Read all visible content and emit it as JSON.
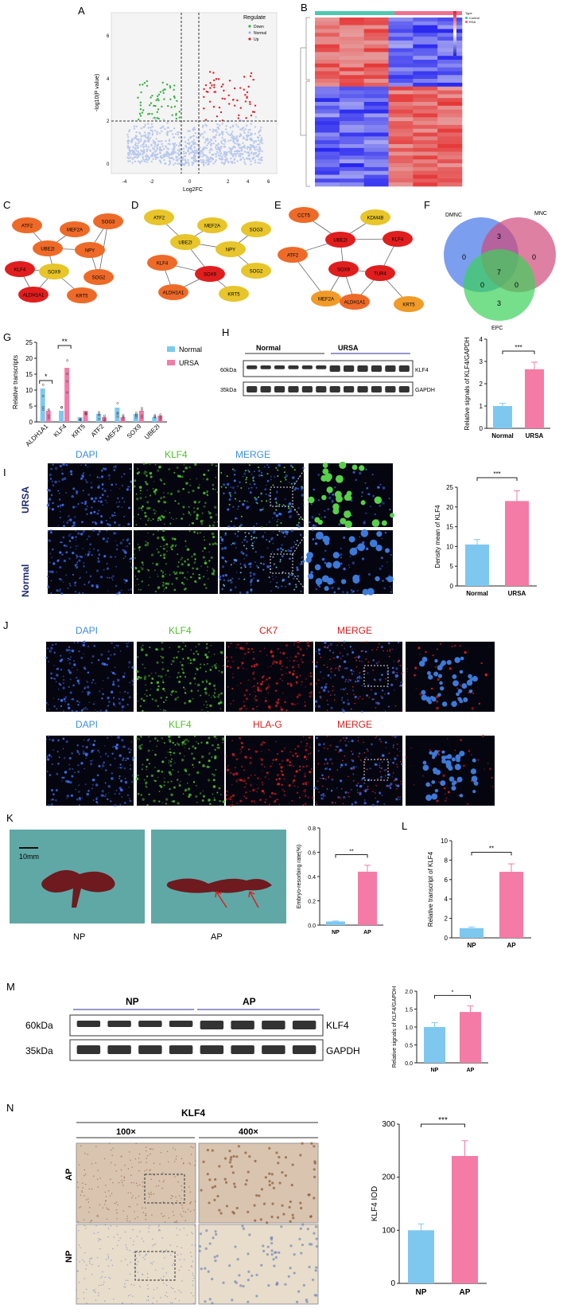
{
  "panels": {
    "A": "A",
    "B": "B",
    "C": "C",
    "D": "D",
    "E": "E",
    "F": "F",
    "G": "G",
    "H": "H",
    "I": "I",
    "J": "J",
    "K": "K",
    "L": "L",
    "M": "M",
    "N": "N"
  },
  "volcano": {
    "xlabel": "Log2FC",
    "ylabel": "-log10(P value)",
    "xticks": [
      "-4",
      "-2",
      "0",
      "2",
      "4",
      "6"
    ],
    "yticks": [
      "0",
      "2",
      "4",
      "6"
    ],
    "legend_title": "Regulate",
    "legend": [
      {
        "label": "Down",
        "color": "#3cb043"
      },
      {
        "label": "Normal",
        "color": "#9fb6e8"
      },
      {
        "label": "Up",
        "color": "#e0202b"
      }
    ]
  },
  "heatmap": {
    "legend_title": "Type",
    "groups": [
      {
        "label": "Control",
        "color": "#4ec9b0"
      },
      {
        "label": "RSA",
        "color": "#f07090"
      }
    ],
    "scale": [
      "1.5",
      "1",
      "0.5",
      "0",
      "-0.5",
      "-1",
      "-1.5"
    ]
  },
  "networks": {
    "C": [
      "ATF2",
      "MEF2A",
      "SOX9",
      "UBE2I",
      "NPY",
      "SOG2",
      "SOG3",
      "KRT5",
      "ALDH1A1",
      "KLF4"
    ],
    "D": [
      "ATF2",
      "MEF2A",
      "SOG3",
      "UBE2I",
      "NPY",
      "KLF4",
      "SOX9",
      "SOG2",
      "ALDH1A1",
      "KRT5"
    ],
    "E": [
      "CCT5",
      "KDM4B",
      "UBE2I",
      "KLF4",
      "SOX9",
      "TUR4",
      "KRT5",
      "ATF2",
      "MEF2A",
      "ALDH1A1"
    ]
  },
  "venn": {
    "sets": [
      "DMNC",
      "MNC",
      "EPC"
    ],
    "values": [
      "0",
      "3",
      "0",
      "7",
      "0",
      "0",
      "3"
    ]
  },
  "colors": {
    "normal": "#7ec8f0",
    "ursa": "#f37ba5",
    "dapi": "#3c8ee0",
    "klf4": "#4fc12d",
    "ck7": "#d42020",
    "merge_red": "#d42020"
  },
  "chart_data": [
    {
      "type": "bar",
      "title": "",
      "ylabel": "Relative transcripts",
      "categories": [
        "ALDH1A1",
        "KLF4",
        "KRT5",
        "ATF2",
        "MEF2A",
        "SOX9",
        "UBE2I"
      ],
      "series": [
        {
          "name": "Normal",
          "values": [
            10.5,
            3.5,
            1.5,
            2.5,
            4.5,
            2.5,
            1.5
          ]
        },
        {
          "name": "URSA",
          "values": [
            3.5,
            17.0,
            3.5,
            1.5,
            1.5,
            3.5,
            2.0
          ]
        }
      ],
      "ylim": [
        0,
        25
      ],
      "yticks": [
        "0",
        "5",
        "10",
        "15",
        "20",
        "25"
      ],
      "significance": [
        "*",
        "**"
      ]
    },
    {
      "type": "bar",
      "ylabel": "Relative signals of KLF4/GAPDH",
      "categories": [
        "Normal",
        "URSA"
      ],
      "values": [
        1.0,
        2.65
      ],
      "ylim": [
        0,
        4
      ],
      "yticks": [
        "0",
        "1",
        "2",
        "3",
        "4"
      ],
      "significance": "***"
    },
    {
      "type": "bar",
      "ylabel": "Density mean of KLF4",
      "categories": [
        "Normal",
        "URSA"
      ],
      "values": [
        10.5,
        21.5
      ],
      "ylim": [
        0,
        25
      ],
      "yticks": [
        "0",
        "5",
        "10",
        "15",
        "20",
        "25"
      ],
      "significance": "***"
    },
    {
      "type": "bar",
      "ylabel": "Embryo-resorbing rate(%)",
      "categories": [
        "NP",
        "AP"
      ],
      "values": [
        0.03,
        0.44
      ],
      "ylim": [
        0,
        0.8
      ],
      "yticks": [
        "0.0",
        "0.2",
        "0.4",
        "0.6",
        "0.8"
      ],
      "significance": "**"
    },
    {
      "type": "bar",
      "ylabel": "Relative transcript of KLF4",
      "categories": [
        "NP",
        "AP"
      ],
      "values": [
        1.0,
        6.8
      ],
      "ylim": [
        0,
        10
      ],
      "yticks": [
        "0",
        "2",
        "4",
        "6",
        "8",
        "10"
      ],
      "significance": "**"
    },
    {
      "type": "bar",
      "ylabel": "Relative signals of KLF4/GAPDH",
      "categories": [
        "NP",
        "AP"
      ],
      "values": [
        1.0,
        1.42
      ],
      "ylim": [
        0,
        2.0
      ],
      "yticks": [
        "0.0",
        "0.5",
        "1.0",
        "1.5",
        "2.0"
      ],
      "significance": "*"
    },
    {
      "type": "bar",
      "ylabel": "KLF4 IOD",
      "categories": [
        "NP",
        "AP"
      ],
      "values": [
        100,
        240
      ],
      "ylim": [
        0,
        300
      ],
      "yticks": [
        "0",
        "100",
        "200",
        "300"
      ],
      "significance": "***"
    }
  ],
  "blotH": {
    "groups": [
      "Normal",
      "URSA"
    ],
    "rows": [
      {
        "mw": "60kDa",
        "name": "KLF4"
      },
      {
        "mw": "35kDa",
        "name": "GAPDH"
      }
    ]
  },
  "imgI": {
    "columns": [
      "DAPI",
      "KLF4",
      "MERGE"
    ],
    "rows": [
      "URSA",
      "Normal"
    ]
  },
  "imgJ": {
    "row1": [
      "DAPI",
      "KLF4",
      "CK7",
      "MERGE"
    ],
    "row2": [
      "DAPI",
      "KLF4",
      "HLA-G",
      "MERGE"
    ]
  },
  "imgK": {
    "scale": "10mm",
    "labels": [
      "NP",
      "AP"
    ]
  },
  "blotM": {
    "groups": [
      "NP",
      "AP"
    ],
    "rows": [
      {
        "mw": "60kDa",
        "name": "KLF4"
      },
      {
        "mw": "35kDa",
        "name": "GAPDH"
      }
    ]
  },
  "ihcN": {
    "title": "KLF4",
    "mags": [
      "100×",
      "400×"
    ],
    "rows": [
      "AP",
      "NP"
    ]
  }
}
